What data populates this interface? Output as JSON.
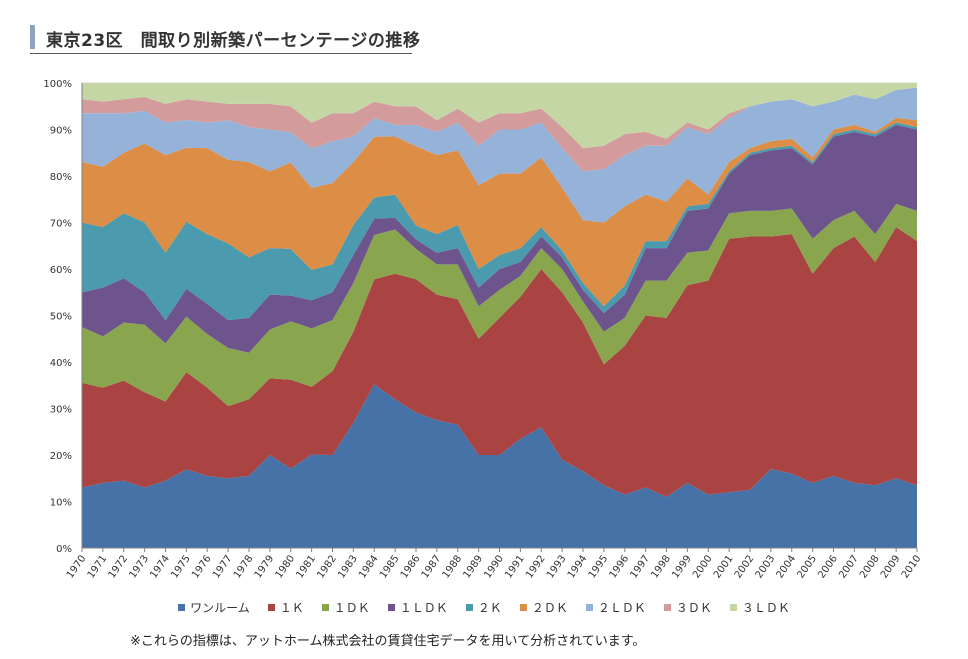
{
  "title": "東京23区　間取り別新築パーセンテージの推移",
  "footnote": "※これらの指標は、アットホーム株式会社の賃貸住宅データを用いて分析されています。",
  "chart_data": {
    "type": "area",
    "stacked": true,
    "ylim": [
      0,
      100
    ],
    "yticks": [
      "0%",
      "10%",
      "20%",
      "30%",
      "40%",
      "50%",
      "60%",
      "70%",
      "80%",
      "90%",
      "100%"
    ],
    "legend_position": "bottom",
    "x": [
      "1970",
      "1971",
      "1972",
      "1973",
      "1974",
      "1975",
      "1976",
      "1977",
      "1978",
      "1979",
      "1980",
      "1981",
      "1982",
      "1983",
      "1984",
      "1985",
      "1986",
      "1987",
      "1988",
      "1989",
      "1990",
      "1991",
      "1992",
      "1993",
      "1994",
      "1995",
      "1996",
      "1997",
      "1998",
      "1999",
      "2000",
      "2001",
      "2002",
      "2003",
      "2004",
      "2005",
      "2006",
      "2007",
      "2008",
      "2009",
      "2010"
    ],
    "series": [
      {
        "name": "ワンルーム",
        "color": "#4672a8",
        "values": [
          13,
          14,
          14.5,
          13,
          14.5,
          17,
          15.5,
          15,
          15.5,
          20,
          17,
          20,
          20,
          27,
          35,
          32,
          29,
          27.5,
          26.5,
          20,
          20,
          23.5,
          26,
          19,
          16.5,
          13.5,
          11.5,
          13,
          11,
          14,
          11.5,
          12,
          12.5,
          17,
          16,
          14,
          15.5,
          14,
          13.5,
          15,
          13.5
        ]
      },
      {
        "name": "１Ｋ",
        "color": "#a94442",
        "values": [
          22.5,
          20.5,
          21.5,
          20.5,
          17,
          21,
          19,
          15.5,
          16.5,
          16.5,
          19,
          14.5,
          18,
          19.5,
          22.5,
          27,
          28.5,
          27,
          27,
          25,
          29.5,
          30.5,
          34,
          36,
          32,
          26,
          32,
          37,
          38.5,
          42.5,
          46,
          54.5,
          54.5,
          50,
          51.5,
          45,
          49,
          53,
          48,
          54,
          52.5
        ]
      },
      {
        "name": "１ＤＫ",
        "color": "#89a64e",
        "values": [
          12,
          11,
          12.5,
          14.5,
          12.5,
          12,
          11.5,
          12.5,
          10,
          10.5,
          12.5,
          12.5,
          11,
          10.5,
          9.5,
          9.5,
          6.5,
          6.5,
          7.5,
          7,
          6,
          4.5,
          4.5,
          5,
          4.5,
          7,
          6,
          7.5,
          8,
          7,
          6.5,
          5.5,
          5.5,
          5.5,
          5.5,
          7.5,
          6,
          5.5,
          6,
          5,
          6.5
        ]
      },
      {
        "name": "１ＬＤＫ",
        "color": "#6e548d",
        "values": [
          7.5,
          10.5,
          9.5,
          7,
          5,
          6,
          6.5,
          6,
          7.5,
          7.5,
          5.5,
          6,
          6,
          6,
          3.5,
          2.5,
          2,
          2.5,
          3.5,
          4,
          4.5,
          3,
          2.5,
          2.5,
          2.5,
          4,
          5,
          7,
          7,
          9,
          9,
          8.5,
          12,
          13,
          13,
          16,
          18,
          17,
          21,
          17,
          17.5
        ]
      },
      {
        "name": "２Ｋ",
        "color": "#4b9aad",
        "values": [
          15,
          13,
          14,
          15,
          14.5,
          14.5,
          15,
          16.5,
          13,
          10,
          10,
          6.5,
          6,
          6.5,
          4.5,
          5,
          3,
          4,
          5,
          4,
          3,
          3,
          2,
          1.5,
          1.5,
          1.5,
          2,
          1.5,
          1.5,
          1,
          1,
          0.5,
          0.5,
          0.5,
          0.5,
          0.5,
          0.5,
          0.5,
          0.5,
          0.5,
          0.5
        ]
      },
      {
        "name": "２ＤＫ",
        "color": "#dc8d46",
        "values": [
          13,
          13,
          13,
          17,
          21,
          16,
          18.5,
          18,
          20.5,
          16.5,
          18.5,
          17.5,
          17.5,
          13.5,
          13,
          12.5,
          17,
          17,
          16,
          18,
          17.5,
          16,
          15,
          13.5,
          13.5,
          18,
          17,
          10,
          8.5,
          6,
          2,
          2,
          1,
          1.5,
          1.5,
          1,
          1,
          1,
          0.5,
          1,
          1.5
        ]
      },
      {
        "name": "２ＬＤＫ",
        "color": "#95b2d9",
        "values": [
          10.5,
          11.5,
          8.5,
          7,
          7,
          6,
          5.5,
          8.5,
          7.5,
          9,
          6.5,
          8.5,
          9,
          5.5,
          4,
          2.5,
          4.5,
          5,
          6,
          8.5,
          9.5,
          9.5,
          7.5,
          8.5,
          10.5,
          11.5,
          11,
          10.5,
          12,
          11,
          13,
          9.5,
          9,
          8.5,
          8.5,
          11,
          6,
          6.5,
          7,
          6,
          7
        ]
      },
      {
        "name": "３ＤＫ",
        "color": "#d49b9c",
        "values": [
          3,
          2.5,
          3,
          3,
          4,
          4.5,
          4.5,
          3.5,
          5,
          5.5,
          5.5,
          5.5,
          6,
          5,
          3.5,
          4,
          4,
          2.5,
          3,
          5,
          3.5,
          3.5,
          3,
          4.5,
          5,
          5,
          4.5,
          3,
          1.5,
          1,
          1,
          1,
          0,
          0,
          0,
          0,
          0,
          0,
          0,
          0,
          0
        ]
      },
      {
        "name": "３ＬＤＫ",
        "color": "#c5d6a5",
        "values": [
          3.5,
          4,
          3.5,
          3,
          4.5,
          3.5,
          4,
          4.5,
          4.5,
          4.5,
          5,
          8.5,
          6.5,
          6.5,
          4,
          5,
          5,
          8,
          5.5,
          8.5,
          6.5,
          6.5,
          5.5,
          9.5,
          14,
          13.5,
          11,
          10.5,
          12,
          8.5,
          10,
          6.5,
          5,
          4,
          3.5,
          5,
          4,
          2.5,
          3.5,
          1.5,
          1
        ]
      }
    ]
  }
}
